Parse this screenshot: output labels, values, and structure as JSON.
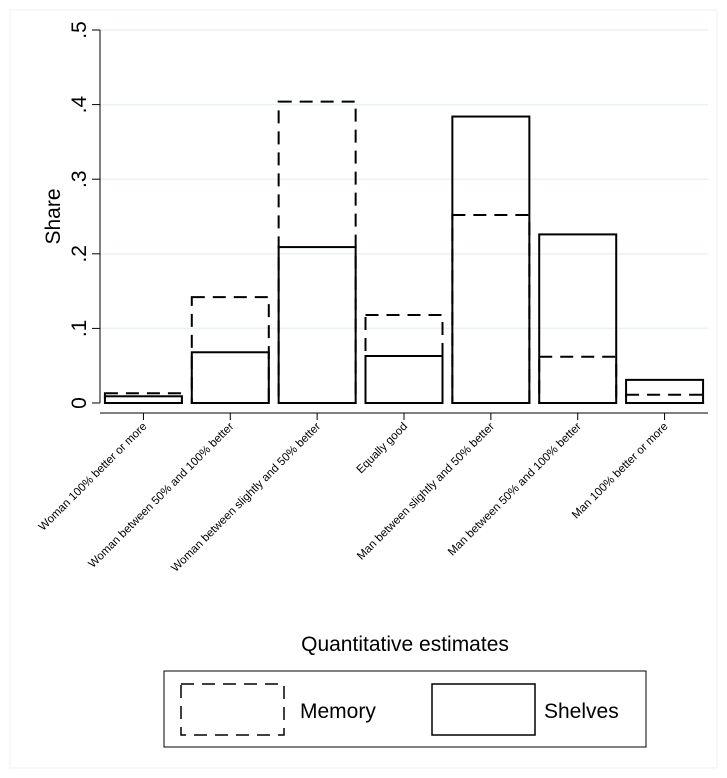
{
  "chart_data": {
    "type": "bar",
    "title": "",
    "xlabel": "Quantitative estimates",
    "ylabel": "Share",
    "ylim": [
      0,
      0.5
    ],
    "yticks": [
      {
        "value": 0,
        "label": "0"
      },
      {
        "value": 0.1,
        "label": ".1"
      },
      {
        "value": 0.2,
        "label": ".2"
      },
      {
        "value": 0.3,
        "label": ".3"
      },
      {
        "value": 0.4,
        "label": ".4"
      },
      {
        "value": 0.5,
        "label": ".5"
      }
    ],
    "grid": true,
    "categories": [
      "Woman 100% better or more",
      "Woman between 50% and 100% better",
      "Woman between slightly and 50% better",
      "Equally good",
      "Man between slightly and 50% better",
      "Man between 50% and 100% better",
      "Man 100% better or more"
    ],
    "series": [
      {
        "name": "Memory",
        "style": "dashed",
        "values": [
          0.013,
          0.142,
          0.404,
          0.118,
          0.252,
          0.062,
          0.011
        ]
      },
      {
        "name": "Shelves",
        "style": "solid",
        "values": [
          0.009,
          0.068,
          0.209,
          0.063,
          0.384,
          0.226,
          0.031
        ]
      }
    ],
    "legend_position": "bottom",
    "colors": {
      "background": "#ffffff",
      "grid": "#eaf2f3",
      "bar_stroke": "#000000"
    }
  }
}
